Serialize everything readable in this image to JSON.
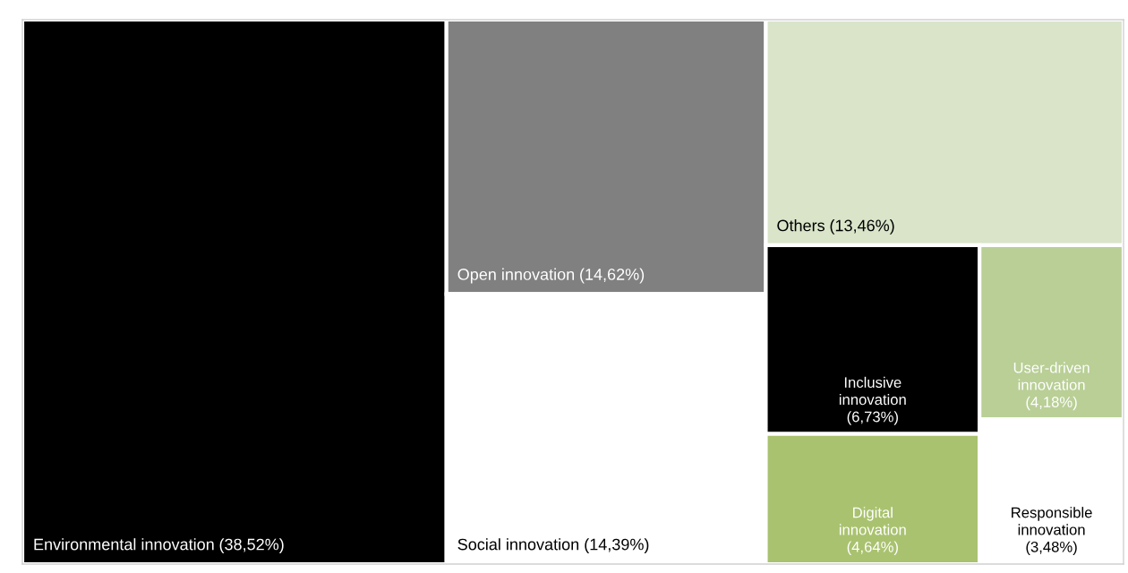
{
  "chart_data": {
    "type": "other",
    "categories": [
      "Environmental innovation",
      "Open innovation",
      "Social innovation",
      "Others",
      "Inclusive innovation",
      "Digital innovation",
      "User-driven innovation",
      "Responsible innovation"
    ],
    "values": [
      38.52,
      14.62,
      14.39,
      13.46,
      6.73,
      4.64,
      4.18,
      3.48
    ],
    "value_labels": [
      "(38,52%)",
      "(14,62%)",
      "(14,39%)",
      "(13,46%)",
      "(6,73%)",
      "(4,64%)",
      "(4,18%)",
      "(3,48%)"
    ],
    "colors": [
      "#000000",
      "#808080",
      "#ffffff",
      "#d9e4c9",
      "#000000",
      "#a9c26f",
      "#b9cf96",
      "#ffffff"
    ]
  }
}
